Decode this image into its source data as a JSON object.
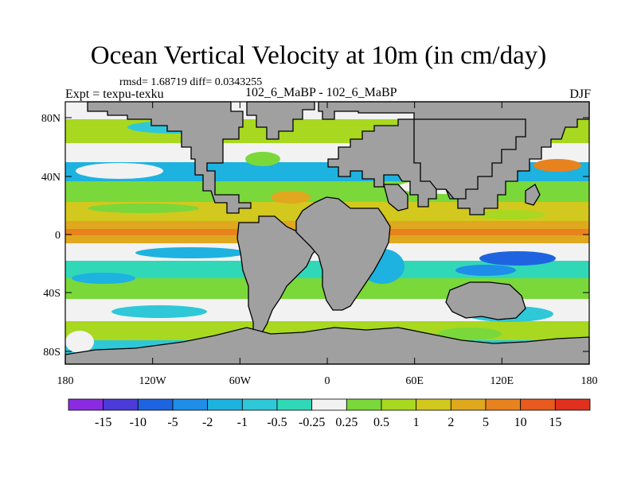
{
  "title": "Ocean Vertical Velocity at 10m (in cm/day)",
  "stats": "rmsd= 1.68719 diff= 0.0343255",
  "left_label": "Expt = texpu-texku",
  "center_label": "102_6_MaBP - 102_6_MaBP",
  "right_label": "DJF",
  "axes": {
    "lat_ticks": [
      "80N",
      "40N",
      "0",
      "40S",
      "80S"
    ],
    "lon_ticks": [
      "180",
      "120W",
      "60W",
      "0",
      "60E",
      "120E",
      "180"
    ]
  },
  "colorbar": {
    "labels": [
      "-15",
      "-10",
      "-5",
      "-2",
      "-1",
      "-0.5",
      "-0.25",
      "0.25",
      "0.5",
      "1",
      "2",
      "5",
      "10",
      "15"
    ],
    "colors": [
      "#8a2be2",
      "#4b3bd8",
      "#1e64e0",
      "#1e8ee8",
      "#1eb2e0",
      "#2ec8d8",
      "#30d8b8",
      "#f2f2f2",
      "#7ad83a",
      "#a8d820",
      "#d2c81e",
      "#e0a81e",
      "#e8821e",
      "#e85a1e",
      "#e0301e"
    ]
  },
  "colors": {
    "land": "#a0a0a0",
    "missing": "#ffffff",
    "coast": "#000000"
  }
}
